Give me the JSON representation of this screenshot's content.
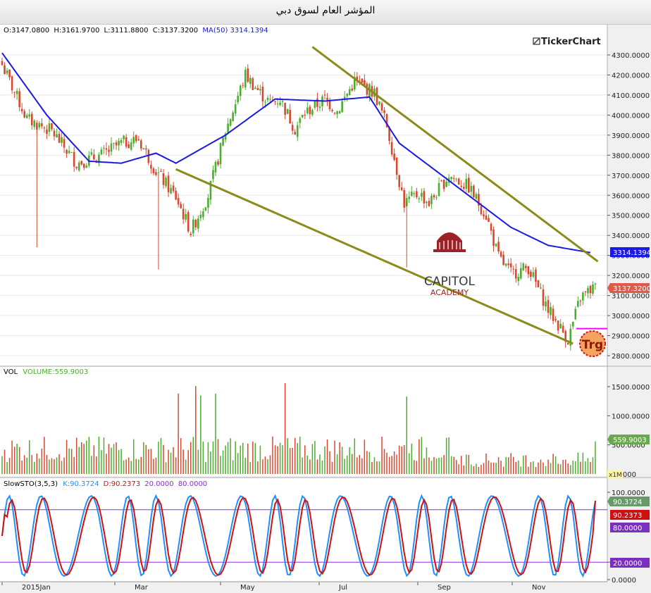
{
  "window": {
    "title": "المؤشر العام لسوق دبي"
  },
  "header": {
    "o_label": "O:",
    "o": "3147.0800",
    "h_label": "H:",
    "h": "3161.9700",
    "l_label": "L:",
    "l": "3111.8800",
    "c_label": "C:",
    "c": "3137.3200",
    "ma_label": "MA(50)",
    "ma": "3314.1394",
    "brand": "TickerChart"
  },
  "watermark": {
    "line1": "CAPITOL",
    "line2": "ACADEMY"
  },
  "target_badge": "Trg",
  "colors": {
    "up": "#4cae2e",
    "down": "#d9482e",
    "ma": "#1a1ae0",
    "trend": "#8b8b1a",
    "stoK": "#1e90ff",
    "stoD": "#d01010",
    "level": "#8a2be2",
    "target": "#ff00ff"
  },
  "price_axis": {
    "ticks": [
      "4300.0000",
      "4200.0000",
      "4100.0000",
      "4000.0000",
      "3900.0000",
      "3800.0000",
      "3700.0000",
      "3600.0000",
      "3500.0000",
      "3400.0000",
      "3300.0000",
      "3200.0000",
      "3100.0000",
      "3000.0000",
      "2900.0000",
      "2800.0000"
    ],
    "ma_tag": "3314.1394",
    "close_tag": "3137.3200"
  },
  "volume_panel": {
    "label": "VOL",
    "series_label": "VOLUME:559.9003",
    "ticks": [
      "1500.0000",
      "1000.0000",
      "500.0000",
      "0.0000"
    ],
    "tag": "559.9003",
    "unit": "x1M"
  },
  "sto_panel": {
    "label": "SlowSTO(3,5,3)",
    "k_label": "K:90.3724",
    "d_label": "D:90.2373",
    "l1": "20.0000",
    "l2": "80.0000",
    "ticks": [
      "100.0000",
      "20.0000",
      "0.0000"
    ],
    "k_tag": "90.3724",
    "d_tag": "90.2373",
    "t80": "80.0000",
    "t20": "20.0000"
  },
  "x_axis": {
    "labels": [
      "2015Jan",
      "Mar",
      "May",
      "Jul",
      "Sep",
      "Nov"
    ]
  },
  "chart_data": {
    "type": "candlestick",
    "title": "المؤشر العام لسوق دبي",
    "ylim": [
      2750,
      4350
    ],
    "bars": 240,
    "anchors": {
      "index": [
        0,
        10,
        20,
        30,
        40,
        48,
        55,
        62,
        70,
        76,
        83,
        90,
        98,
        104,
        108,
        112,
        118,
        122,
        130,
        135,
        142,
        150,
        155,
        162,
        168,
        172,
        180,
        188,
        195,
        200,
        205,
        212,
        220,
        228,
        233,
        238
      ],
      "close": [
        4250,
        3980,
        3920,
        3760,
        3800,
        3860,
        3880,
        3720,
        3590,
        3420,
        3600,
        3920,
        4200,
        4110,
        4060,
        4080,
        3930,
        4010,
        4080,
        4020,
        4170,
        4110,
        3950,
        3560,
        3610,
        3560,
        3700,
        3640,
        3500,
        3290,
        3210,
        3240,
        3030,
        2880,
        3090,
        3137
      ]
    },
    "ma50": {
      "index": [
        0,
        18,
        35,
        48,
        62,
        70,
        90,
        110,
        130,
        148,
        160,
        175,
        190,
        205,
        220,
        237
      ],
      "value": [
        4310,
        4000,
        3770,
        3760,
        3810,
        3760,
        3900,
        4080,
        4070,
        4090,
        3860,
        3720,
        3580,
        3440,
        3350,
        3314
      ]
    },
    "trendlines": [
      {
        "from": [
          125,
          4340
        ],
        "to": [
          240,
          3270
        ]
      },
      {
        "from": [
          70,
          3730
        ],
        "to": [
          230,
          2860
        ]
      }
    ],
    "target_level": 2935,
    "volume_ylim": [
      0,
      1750
    ],
    "volume_spikes": {
      "index": [
        71,
        78,
        80,
        86,
        114,
        163
      ],
      "value": [
        1380,
        1510,
        1350,
        1380,
        1560,
        1330
      ]
    },
    "sto_levels": [
      20,
      80
    ],
    "last": {
      "open": 3147.08,
      "high": 3161.97,
      "low": 3111.88,
      "close": 3137.32,
      "ma50": 3314.1394,
      "volume": 559.9003,
      "k": 90.3724,
      "d": 90.2373
    }
  }
}
